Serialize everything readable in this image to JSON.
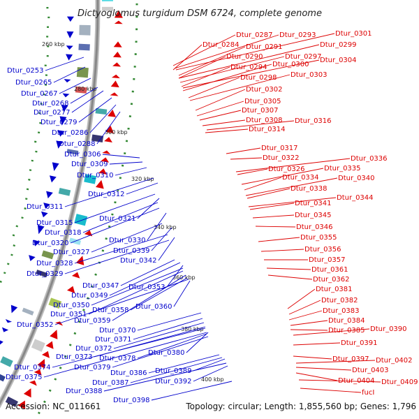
{
  "title": "Dictyoglomus turgidum DSM 6724, complete genome",
  "footer": {
    "accession": "Accession: NC_011661",
    "summary": "Topology: circular; Length: 1,855,560 bp; Genes: 1,796"
  },
  "colors": {
    "forward": "#0000cc",
    "reverse": "#dd0000",
    "backbone": "#888888",
    "gc_skew": "#338833"
  },
  "kbp_ticks": [
    "260 kbp",
    "280 kbp",
    "300 kbp",
    "320 kbp",
    "340 kbp",
    "360 kbp",
    "380 kbp",
    "400 kbp"
  ],
  "left_labels": [
    "Dtur_0253",
    "Dtur_0265",
    "Dtur_0267",
    "Dtur_0268",
    "Dtur_0277",
    "Dtur_0279",
    "Dtur_0286",
    "Dtur_0288",
    "Dtur_0306",
    "Dtur_0309",
    "Dtur_0310",
    "Dtur_0312",
    "Dtur_0311",
    "Dtur_0321",
    "Dtur_0315",
    "Dtur_0318",
    "Dtur_0320",
    "Dtur_0330",
    "Dtur_0339",
    "Dtur_0327",
    "Dtur_0342",
    "Dtur_0328",
    "Dtur_0329",
    "Dtur_0347",
    "Dtur_0353",
    "Dtur_0349",
    "Dtur_0350",
    "Dtur_0358",
    "Dtur_0360",
    "Dtur_0351",
    "Dtur_0359",
    "Dtur_0352",
    "Dtur_0370",
    "Dtur_0371",
    "Dtur_0372",
    "Dtur_0380",
    "Dtur_0373",
    "Dtur_0378",
    "Dtur_0374",
    "Dtur_0379",
    "Dtur_0375",
    "Dtur_0386",
    "Dtur_0389",
    "Dtur_0387",
    "Dtur_0392",
    "Dtur_0388",
    "Dtur_0398"
  ],
  "right_labels": [
    "Dtur_0287",
    "Dtur_0293",
    "Dtur_0301",
    "Dtur_0284",
    "Dtur_0291",
    "Dtur_0299",
    "Dtur_0290",
    "Dtur_0297",
    "Dtur_0304",
    "Dtur_0294",
    "Dtur_0300",
    "Dtur_0298",
    "Dtur_0303",
    "Dtur_0302",
    "Dtur_0305",
    "Dtur_0307",
    "Dtur_0308",
    "Dtur_0316",
    "Dtur_0314",
    "Dtur_0317",
    "Dtur_0322",
    "Dtur_0336",
    "Dtur_0326",
    "Dtur_0335",
    "Dtur_0334",
    "Dtur_0340",
    "Dtur_0338",
    "Dtur_0344",
    "Dtur_0341",
    "Dtur_0345",
    "Dtur_0346",
    "Dtur_0355",
    "Dtur_0356",
    "Dtur_0357",
    "Dtur_0361",
    "Dtur_0362",
    "Dtur_0381",
    "Dtur_0382",
    "Dtur_0383",
    "Dtur_0384",
    "Dtur_0385",
    "Dtur_0390",
    "Dtur_0391",
    "Dtur_0397",
    "Dtur_0402",
    "Dtur_0403",
    "Dtur_0404",
    "Dtur_0409",
    "fucI"
  ]
}
